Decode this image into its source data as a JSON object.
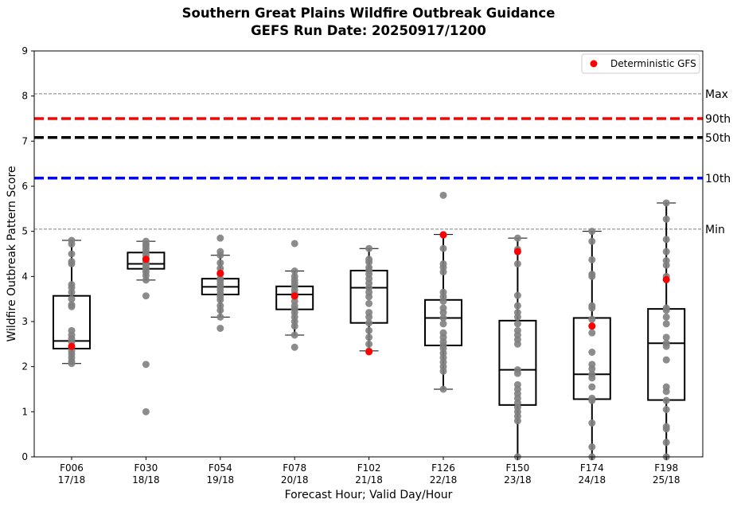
{
  "chart_data": {
    "type": "box",
    "title": "Southern Great Plains Wildfire Outbreak Guidance",
    "subtitle": "GEFS Run Date: 20250917/1200",
    "xlabel": "Forecast Hour; Valid Day/Hour",
    "ylabel": "Wildfire Outbreak Pattern Score",
    "ylim": [
      0,
      9
    ],
    "yticks": [
      0,
      1,
      2,
      3,
      4,
      5,
      6,
      7,
      8,
      9
    ],
    "categories": [
      {
        "hour": "F006",
        "valid": "17/18"
      },
      {
        "hour": "F030",
        "valid": "18/18"
      },
      {
        "hour": "F054",
        "valid": "19/18"
      },
      {
        "hour": "F078",
        "valid": "20/18"
      },
      {
        "hour": "F102",
        "valid": "21/18"
      },
      {
        "hour": "F126",
        "valid": "22/18"
      },
      {
        "hour": "F150",
        "valid": "23/18"
      },
      {
        "hour": "F174",
        "valid": "24/18"
      },
      {
        "hour": "F198",
        "valid": "25/18"
      }
    ],
    "boxes": [
      {
        "whisker_low": 2.07,
        "q1": 2.4,
        "median": 2.57,
        "q3": 3.57,
        "whisker_high": 4.8
      },
      {
        "whisker_low": 3.92,
        "q1": 4.17,
        "median": 4.28,
        "q3": 4.53,
        "whisker_high": 4.78
      },
      {
        "whisker_low": 3.1,
        "q1": 3.6,
        "median": 3.77,
        "q3": 3.95,
        "whisker_high": 4.47
      },
      {
        "whisker_low": 2.7,
        "q1": 3.27,
        "median": 3.6,
        "q3": 3.78,
        "whisker_high": 4.12
      },
      {
        "whisker_low": 2.35,
        "q1": 2.97,
        "median": 3.75,
        "q3": 4.13,
        "whisker_high": 4.62
      },
      {
        "whisker_low": 1.5,
        "q1": 2.47,
        "median": 3.08,
        "q3": 3.48,
        "whisker_high": 4.93
      },
      {
        "whisker_low": 0.0,
        "q1": 1.15,
        "median": 1.93,
        "q3": 3.02,
        "whisker_high": 4.85
      },
      {
        "whisker_low": 0.0,
        "q1": 1.28,
        "median": 1.83,
        "q3": 3.08,
        "whisker_high": 5.0
      },
      {
        "whisker_low": 0.0,
        "q1": 1.26,
        "median": 2.52,
        "q3": 3.28,
        "whisker_high": 5.63
      }
    ],
    "members": [
      [
        2.07,
        2.12,
        2.2,
        2.28,
        2.35,
        2.45,
        2.55,
        2.62,
        2.7,
        2.8,
        3.33,
        3.37,
        3.5,
        3.65,
        3.75,
        3.82,
        4.28,
        4.33,
        4.5,
        4.72,
        4.8
      ],
      [
        1.0,
        2.05,
        3.57,
        3.92,
        4.02,
        4.1,
        4.17,
        4.22,
        4.28,
        4.33,
        4.4,
        4.47,
        4.55,
        4.62,
        4.68,
        4.72,
        4.78
      ],
      [
        2.85,
        3.1,
        3.25,
        3.35,
        3.48,
        3.55,
        3.62,
        3.7,
        3.77,
        3.83,
        3.9,
        3.95,
        4.05,
        4.18,
        4.3,
        4.47,
        4.55,
        4.85
      ],
      [
        2.43,
        2.7,
        2.9,
        3.0,
        3.1,
        3.2,
        3.28,
        3.35,
        3.45,
        3.55,
        3.62,
        3.7,
        3.78,
        3.85,
        3.92,
        4.0,
        4.12,
        4.73
      ],
      [
        2.35,
        2.5,
        2.65,
        2.8,
        2.97,
        3.1,
        3.2,
        3.4,
        3.55,
        3.65,
        3.75,
        3.85,
        3.95,
        4.05,
        4.13,
        4.2,
        4.32,
        4.38,
        4.62
      ],
      [
        1.5,
        1.9,
        2.0,
        2.1,
        2.2,
        2.3,
        2.4,
        2.47,
        2.55,
        2.65,
        2.75,
        2.95,
        3.08,
        3.2,
        3.3,
        3.45,
        3.55,
        3.65,
        4.1,
        4.2,
        4.28,
        4.62,
        4.93,
        5.8
      ],
      [
        0.0,
        0.8,
        0.9,
        1.0,
        1.1,
        1.2,
        1.3,
        1.4,
        1.5,
        1.6,
        1.85,
        1.93,
        2.5,
        2.6,
        2.7,
        2.8,
        2.95,
        3.1,
        3.2,
        3.35,
        3.58,
        4.28,
        4.6,
        4.85
      ],
      [
        0.0,
        0.22,
        0.75,
        1.25,
        1.3,
        1.55,
        1.75,
        1.83,
        1.95,
        2.05,
        2.32,
        2.75,
        2.9,
        3.05,
        3.3,
        3.35,
        4.0,
        4.05,
        4.37,
        4.78,
        5.0
      ],
      [
        0.0,
        0.32,
        0.62,
        0.67,
        1.05,
        1.25,
        1.45,
        1.55,
        2.15,
        2.45,
        2.52,
        2.65,
        2.95,
        3.1,
        3.25,
        3.3,
        4.0,
        4.25,
        4.35,
        4.55,
        4.82,
        5.27,
        5.63
      ]
    ],
    "deterministic": [
      2.45,
      4.38,
      4.07,
      3.57,
      2.33,
      4.92,
      4.55,
      2.9,
      3.93
    ],
    "reference_lines": [
      {
        "label": "Max",
        "value": 8.05,
        "color": "#808080",
        "style": "dashed-thin"
      },
      {
        "label": "90th",
        "value": 7.5,
        "color": "#ff0000",
        "style": "dashed-thick"
      },
      {
        "label": "50th",
        "value": 7.08,
        "color": "#000000",
        "style": "dashed-thick"
      },
      {
        "label": "10th",
        "value": 6.18,
        "color": "#0000ff",
        "style": "dashed-thick"
      },
      {
        "label": "Min",
        "value": 5.05,
        "color": "#808080",
        "style": "dashed-thin"
      }
    ],
    "legend": {
      "placement": "top-right",
      "entries": [
        {
          "label": "Deterministic GFS",
          "color": "#ff0000",
          "marker": "circle"
        }
      ]
    },
    "colors": {
      "member_points": "#808080",
      "deterministic": "#ff0000",
      "box_edge": "#000000"
    },
    "grid": false
  }
}
